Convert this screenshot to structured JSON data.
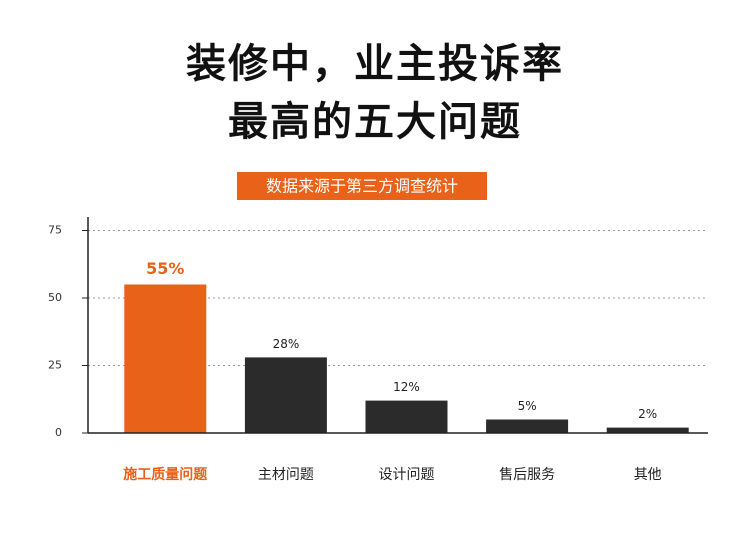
{
  "chart_data": {
    "type": "bar",
    "title": [
      "装修中，业主投诉率",
      "最高的五大问题"
    ],
    "subtitle": "数据来源于第三方调查统计",
    "categories": [
      "施工质量问题",
      "主材问题",
      "设计问题",
      "售后服务",
      "其他"
    ],
    "values": [
      55,
      28,
      12,
      5,
      2
    ],
    "value_labels": [
      "55%",
      "28%",
      "12%",
      "5%",
      "2%"
    ],
    "colors": [
      "#e8621a",
      "#2b2b2b",
      "#2b2b2b",
      "#2b2b2b",
      "#2b2b2b"
    ],
    "ylim": [
      0,
      80
    ],
    "yticks": [
      0,
      25,
      50,
      75
    ],
    "grid": true
  }
}
